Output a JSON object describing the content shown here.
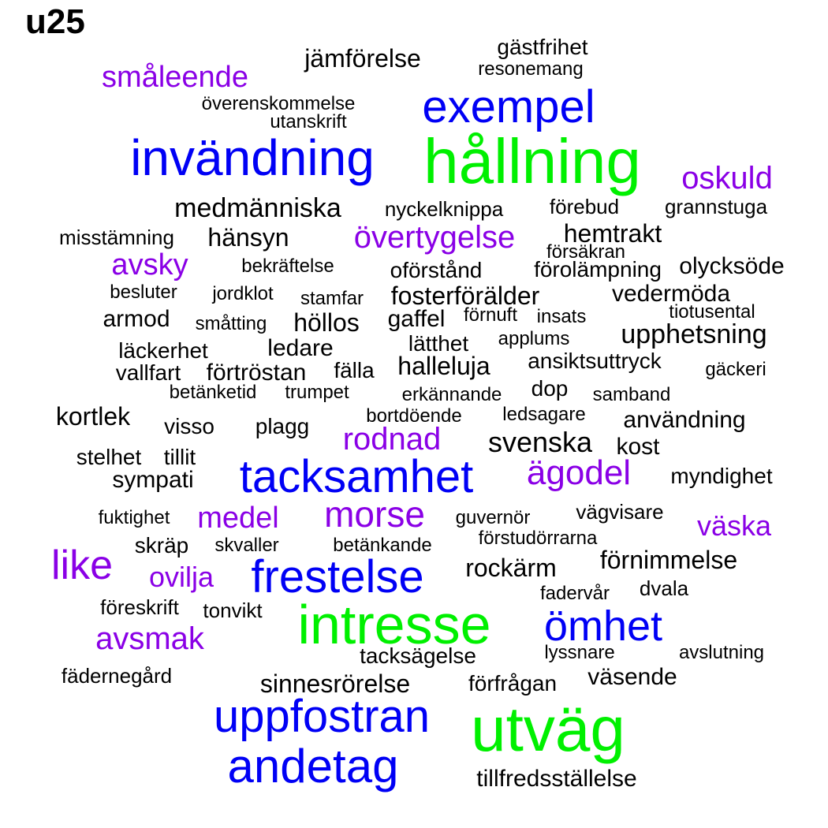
{
  "title": "u25",
  "colors": {
    "black": "#000000",
    "purple": "#8A00E6",
    "blue": "#0000F5",
    "green": "#00F000"
  },
  "words": [
    {
      "text": "gästfrihet",
      "color": "black"
    },
    {
      "text": "jämförelse",
      "color": "black"
    },
    {
      "text": "resonemang",
      "color": "black"
    },
    {
      "text": "småleende",
      "color": "purple"
    },
    {
      "text": "exempel",
      "color": "blue"
    },
    {
      "text": "överenskommelse",
      "color": "black"
    },
    {
      "text": "utanskrift",
      "color": "black"
    },
    {
      "text": "invändning",
      "color": "blue"
    },
    {
      "text": "hållning",
      "color": "green"
    },
    {
      "text": "oskuld",
      "color": "purple"
    },
    {
      "text": "medmänniska",
      "color": "black"
    },
    {
      "text": "nyckelknippa",
      "color": "black"
    },
    {
      "text": "förebud",
      "color": "black"
    },
    {
      "text": "grannstuga",
      "color": "black"
    },
    {
      "text": "misstämning",
      "color": "black"
    },
    {
      "text": "hänsyn",
      "color": "black"
    },
    {
      "text": "övertygelse",
      "color": "purple"
    },
    {
      "text": "hemtrakt",
      "color": "black"
    },
    {
      "text": "försäkran",
      "color": "black"
    },
    {
      "text": "avsky",
      "color": "purple"
    },
    {
      "text": "bekräftelse",
      "color": "black"
    },
    {
      "text": "oförstånd",
      "color": "black"
    },
    {
      "text": "förolämpning",
      "color": "black"
    },
    {
      "text": "olycksöde",
      "color": "black"
    },
    {
      "text": "besluter",
      "color": "black"
    },
    {
      "text": "jordklot",
      "color": "black"
    },
    {
      "text": "stamfar",
      "color": "black"
    },
    {
      "text": "fosterförälder",
      "color": "black"
    },
    {
      "text": "vedermöda",
      "color": "black"
    },
    {
      "text": "tiotusental",
      "color": "black"
    },
    {
      "text": "armod",
      "color": "black"
    },
    {
      "text": "småtting",
      "color": "black"
    },
    {
      "text": "höllos",
      "color": "black"
    },
    {
      "text": "gaffel",
      "color": "black"
    },
    {
      "text": "förnuft",
      "color": "black"
    },
    {
      "text": "insats",
      "color": "black"
    },
    {
      "text": "upphetsning",
      "color": "black"
    },
    {
      "text": "läckerhet",
      "color": "black"
    },
    {
      "text": "ledare",
      "color": "black"
    },
    {
      "text": "lätthet",
      "color": "black"
    },
    {
      "text": "applums",
      "color": "black"
    },
    {
      "text": "vallfart",
      "color": "black"
    },
    {
      "text": "förtröstan",
      "color": "black"
    },
    {
      "text": "fälla",
      "color": "black"
    },
    {
      "text": "halleluja",
      "color": "black"
    },
    {
      "text": "ansiktsuttryck",
      "color": "black"
    },
    {
      "text": "gäckeri",
      "color": "black"
    },
    {
      "text": "betänketid",
      "color": "black"
    },
    {
      "text": "trumpet",
      "color": "black"
    },
    {
      "text": "erkännande",
      "color": "black"
    },
    {
      "text": "dop",
      "color": "black"
    },
    {
      "text": "samband",
      "color": "black"
    },
    {
      "text": "kortlek",
      "color": "black"
    },
    {
      "text": "bortdöende",
      "color": "black"
    },
    {
      "text": "ledsagare",
      "color": "black"
    },
    {
      "text": "användning",
      "color": "black"
    },
    {
      "text": "visso",
      "color": "black"
    },
    {
      "text": "plagg",
      "color": "black"
    },
    {
      "text": "rodnad",
      "color": "purple"
    },
    {
      "text": "svenska",
      "color": "black"
    },
    {
      "text": "kost",
      "color": "black"
    },
    {
      "text": "stelhet",
      "color": "black"
    },
    {
      "text": "tillit",
      "color": "black"
    },
    {
      "text": "tacksamhet",
      "color": "blue"
    },
    {
      "text": "ägodel",
      "color": "purple"
    },
    {
      "text": "sympati",
      "color": "black"
    },
    {
      "text": "myndighet",
      "color": "black"
    },
    {
      "text": "fuktighet",
      "color": "black"
    },
    {
      "text": "medel",
      "color": "purple"
    },
    {
      "text": "morse",
      "color": "purple"
    },
    {
      "text": "guvernör",
      "color": "black"
    },
    {
      "text": "vägvisare",
      "color": "black"
    },
    {
      "text": "väska",
      "color": "purple"
    },
    {
      "text": "skräp",
      "color": "black"
    },
    {
      "text": "skvaller",
      "color": "black"
    },
    {
      "text": "betänkande",
      "color": "black"
    },
    {
      "text": "förstudörrarna",
      "color": "black"
    },
    {
      "text": "like",
      "color": "purple"
    },
    {
      "text": "frestelse",
      "color": "blue"
    },
    {
      "text": "rockärm",
      "color": "black"
    },
    {
      "text": "förnimmelse",
      "color": "black"
    },
    {
      "text": "ovilja",
      "color": "purple"
    },
    {
      "text": "fadervår",
      "color": "black"
    },
    {
      "text": "dvala",
      "color": "black"
    },
    {
      "text": "föreskrift",
      "color": "black"
    },
    {
      "text": "tonvikt",
      "color": "black"
    },
    {
      "text": "intresse",
      "color": "green"
    },
    {
      "text": "ömhet",
      "color": "blue"
    },
    {
      "text": "avsmak",
      "color": "purple"
    },
    {
      "text": "lyssnare",
      "color": "black"
    },
    {
      "text": "avslutning",
      "color": "black"
    },
    {
      "text": "tacksägelse",
      "color": "black"
    },
    {
      "text": "fädernegård",
      "color": "black"
    },
    {
      "text": "sinnesrörelse",
      "color": "black"
    },
    {
      "text": "förfrågan",
      "color": "black"
    },
    {
      "text": "väsende",
      "color": "black"
    },
    {
      "text": "uppfostran",
      "color": "blue"
    },
    {
      "text": "utväg",
      "color": "green"
    },
    {
      "text": "andetag",
      "color": "blue"
    },
    {
      "text": "tillfredsställelse",
      "color": "black"
    }
  ]
}
